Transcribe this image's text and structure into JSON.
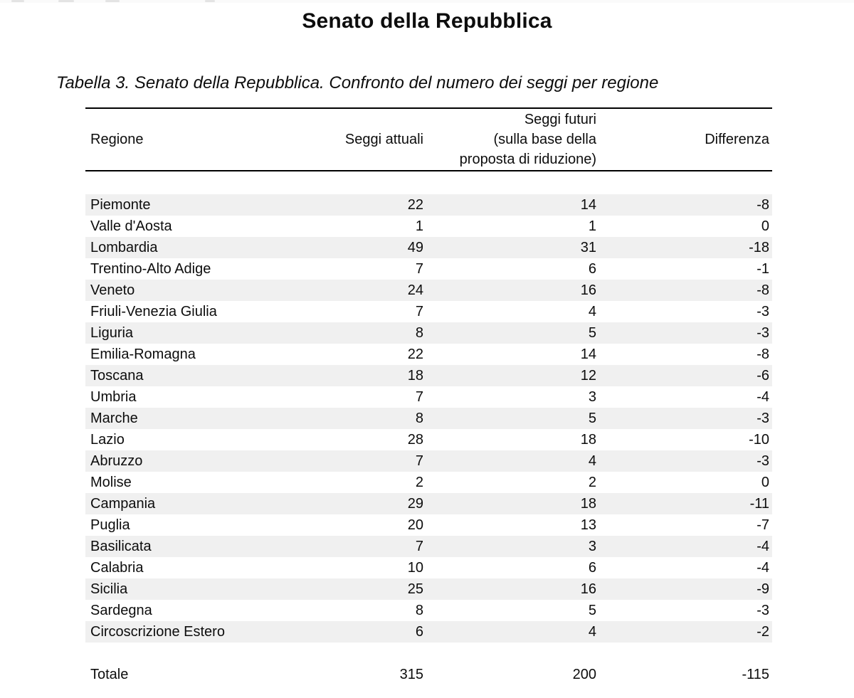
{
  "page": {
    "title": "Senato della Repubblica",
    "caption": "Tabella 3. Senato della Repubblica. Confronto del numero dei seggi per regione"
  },
  "table": {
    "headers": {
      "region": "Regione",
      "current_seats": "Seggi attuali",
      "future_seats_lines": [
        "Seggi futuri",
        "(sulla base della",
        "proposta di riduzione)"
      ],
      "difference": "Differenza"
    },
    "rows": [
      {
        "region": "Piemonte",
        "current": "22",
        "future": "14",
        "difference": "-8"
      },
      {
        "region": "Valle d'Aosta",
        "current": "1",
        "future": "1",
        "difference": "0"
      },
      {
        "region": "Lombardia",
        "current": "49",
        "future": "31",
        "difference": "-18"
      },
      {
        "region": "Trentino-Alto Adige",
        "current": "7",
        "future": "6",
        "difference": "-1"
      },
      {
        "region": "Veneto",
        "current": "24",
        "future": "16",
        "difference": "-8"
      },
      {
        "region": "Friuli-Venezia Giulia",
        "current": "7",
        "future": "4",
        "difference": "-3"
      },
      {
        "region": "Liguria",
        "current": "8",
        "future": "5",
        "difference": "-3"
      },
      {
        "region": "Emilia-Romagna",
        "current": "22",
        "future": "14",
        "difference": "-8"
      },
      {
        "region": "Toscana",
        "current": "18",
        "future": "12",
        "difference": "-6"
      },
      {
        "region": "Umbria",
        "current": "7",
        "future": "3",
        "difference": "-4"
      },
      {
        "region": "Marche",
        "current": "8",
        "future": "5",
        "difference": "-3"
      },
      {
        "region": "Lazio",
        "current": "28",
        "future": "18",
        "difference": "-10"
      },
      {
        "region": "Abruzzo",
        "current": "7",
        "future": "4",
        "difference": "-3"
      },
      {
        "region": "Molise",
        "current": "2",
        "future": "2",
        "difference": "0"
      },
      {
        "region": "Campania",
        "current": "29",
        "future": "18",
        "difference": "-11"
      },
      {
        "region": "Puglia",
        "current": "20",
        "future": "13",
        "difference": "-7"
      },
      {
        "region": "Basilicata",
        "current": "7",
        "future": "3",
        "difference": "-4"
      },
      {
        "region": "Calabria",
        "current": "10",
        "future": "6",
        "difference": "-4"
      },
      {
        "region": "Sicilia",
        "current": "25",
        "future": "16",
        "difference": "-9"
      },
      {
        "region": "Sardegna",
        "current": "8",
        "future": "5",
        "difference": "-3"
      },
      {
        "region": "Circoscrizione Estero",
        "current": "6",
        "future": "4",
        "difference": "-2"
      }
    ],
    "total": {
      "region": "Totale",
      "current": "315",
      "future": "200",
      "difference": "-115"
    }
  },
  "colors": {
    "row_stripe": "#f0f0f0",
    "text": "#0d0d0d",
    "rule": "#000000",
    "background": "#ffffff"
  }
}
